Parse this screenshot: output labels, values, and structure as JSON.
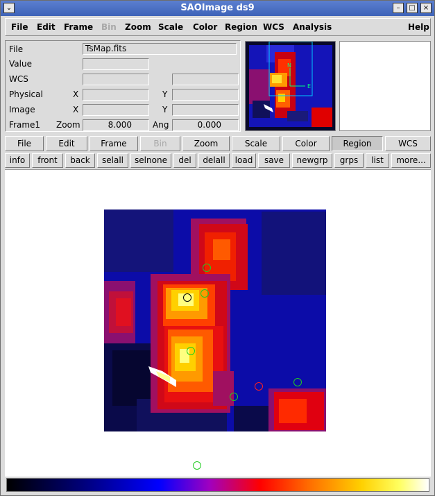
{
  "window": {
    "title": "SAOImage ds9"
  },
  "menubar": {
    "items": [
      "File",
      "Edit",
      "Frame",
      "Bin",
      "Zoom",
      "Scale",
      "Color",
      "Region",
      "WCS",
      "Analysis"
    ],
    "help": "Help"
  },
  "info": {
    "file_label": "File",
    "file_value": "TsMap.fits",
    "value_label": "Value",
    "wcs_label": "WCS",
    "physical_label": "Physical",
    "image_label": "Image",
    "x_label": "X",
    "y_label": "Y",
    "frame_label": "Frame1",
    "zoom_label": "Zoom",
    "zoom_value": "8.000",
    "ang_label": "Ang",
    "ang_value": "0.000"
  },
  "panner": {
    "north_label": "N",
    "east_label": "E"
  },
  "buttonbar": {
    "main": [
      "File",
      "Edit",
      "Frame",
      "Bin",
      "Zoom",
      "Scale",
      "Color",
      "Region",
      "WCS"
    ],
    "selected": "Region",
    "disabled": "Bin",
    "region": [
      "info",
      "front",
      "back",
      "selall",
      "selnone",
      "del",
      "delall",
      "load",
      "save",
      "newgrp",
      "grps",
      "list",
      "more..."
    ]
  },
  "colors": {
    "title_bg": "#3e63b8",
    "region_green": "#22cc22",
    "region_red": "#ff2020",
    "region_black": "#000000"
  }
}
